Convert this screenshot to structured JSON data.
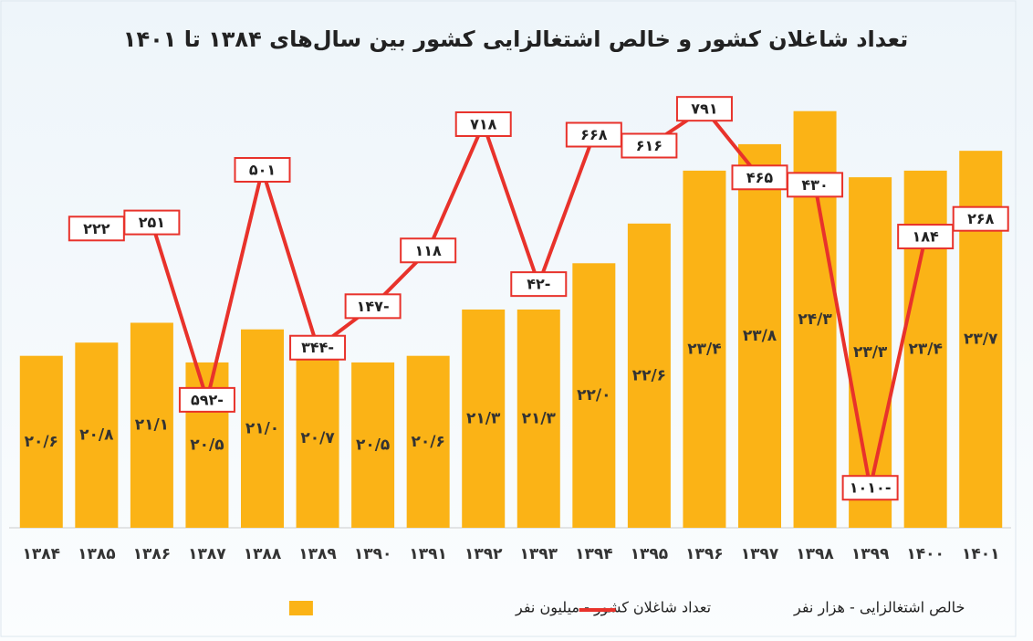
{
  "chart_data": {
    "type": "bar",
    "title": "تعداد شاغلان کشور و خالص اشتغالزایی کشور بین سال‌های ۱۳۸۴ تا ۱۴۰۱",
    "categories": [
      "۱۳۸۴",
      "۱۳۸۵",
      "۱۳۸۶",
      "۱۳۸۷",
      "۱۳۸۸",
      "۱۳۸۹",
      "۱۳۹۰",
      "۱۳۹۱",
      "۱۳۹۲",
      "۱۳۹۳",
      "۱۳۹۴",
      "۱۳۹۵",
      "۱۳۹۶",
      "۱۳۹۷",
      "۱۳۹۸",
      "۱۳۹۹",
      "۱۴۰۰",
      "۱۴۰۱"
    ],
    "series": [
      {
        "name": "تعداد شاغلان کشور - میلیون نفر",
        "type": "bar",
        "color": "#fbb316",
        "values": [
          20.6,
          20.8,
          21.1,
          20.5,
          21.0,
          20.7,
          20.5,
          20.6,
          21.3,
          21.3,
          22.0,
          22.6,
          23.4,
          23.8,
          24.3,
          23.3,
          23.4,
          23.7
        ],
        "value_labels": [
          "۲۰/۶",
          "۲۰/۸",
          "۲۱/۱",
          "۲۰/۵",
          "۲۱/۰",
          "۲۰/۷",
          "۲۰/۵",
          "۲۰/۶",
          "۲۱/۳",
          "۲۱/۳",
          "۲۲/۰",
          "۲۲/۶",
          "۲۳/۴",
          "۲۳/۸",
          "۲۴/۳",
          "۲۳/۳",
          "۲۳/۴",
          "۲۳/۷"
        ]
      },
      {
        "name": "خالص اشتغالزایی - هزار نفر",
        "type": "line",
        "color": "#e8322b",
        "axis": "y2",
        "values": [
          null,
          222,
          251,
          -592,
          501,
          -344,
          -147,
          118,
          718,
          -42,
          668,
          616,
          791,
          465,
          430,
          -1010,
          184,
          268
        ],
        "value_labels": [
          null,
          "۲۲۲",
          "۲۵۱",
          "۵۹۲-",
          "۵۰۱",
          "۳۴۴-",
          "۱۴۷-",
          "۱۱۸",
          "۷۱۸",
          "۴۲-",
          "۶۶۸",
          "۶۱۶",
          "۷۹۱",
          "۴۶۵",
          "۴۳۰",
          "۱۰۱۰-",
          "۱۸۴",
          "۲۶۸"
        ]
      }
    ],
    "ylim": [
      18,
      25
    ],
    "y2lim": [
      -1200,
      1000
    ]
  }
}
